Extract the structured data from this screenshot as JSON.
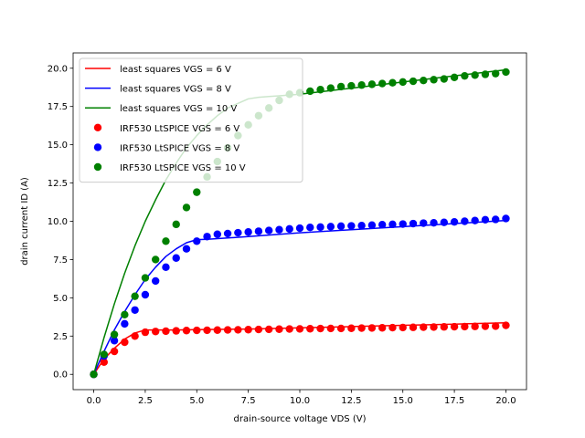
{
  "chart_data": {
    "type": "scatter",
    "title": "",
    "xlabel": "drain-source voltage VDS (V)",
    "ylabel": "drain current ID (A)",
    "xlim": [
      -1.0,
      21.0
    ],
    "ylim": [
      -1.0,
      21.0
    ],
    "xticks": [
      0.0,
      2.5,
      5.0,
      7.5,
      10.0,
      12.5,
      15.0,
      17.5,
      20.0
    ],
    "xtick_labels": [
      "0.0",
      "2.5",
      "5.0",
      "7.5",
      "10.0",
      "12.5",
      "15.0",
      "17.5",
      "20.0"
    ],
    "yticks": [
      0.0,
      2.5,
      5.0,
      7.5,
      10.0,
      12.5,
      15.0,
      17.5,
      20.0
    ],
    "ytick_labels": [
      "0.0",
      "2.5",
      "5.0",
      "7.5",
      "10.0",
      "12.5",
      "15.0",
      "17.5",
      "20.0"
    ],
    "grid": false,
    "legend_position": "top-left",
    "lines": [
      {
        "name": "least squares VGS = 6 V",
        "color": "#ff0000",
        "x": [
          0.0,
          0.5,
          1.0,
          1.5,
          2.0,
          2.5,
          3.0,
          4.0,
          5.0,
          7.5,
          10.0,
          12.5,
          15.0,
          17.5,
          20.0
        ],
        "y": [
          0.0,
          1.0,
          1.7,
          2.3,
          2.7,
          2.9,
          2.9,
          2.9,
          2.92,
          2.96,
          3.04,
          3.12,
          3.2,
          3.28,
          3.37
        ]
      },
      {
        "name": "least squares VGS = 8 V",
        "color": "#0000ff",
        "x": [
          0.0,
          0.5,
          1.0,
          1.5,
          2.0,
          2.5,
          3.0,
          3.5,
          4.0,
          4.5,
          5.0,
          5.5,
          7.5,
          10.0,
          12.5,
          15.0,
          17.5,
          20.0
        ],
        "y": [
          0.0,
          1.5,
          2.9,
          4.1,
          5.2,
          6.2,
          7.0,
          7.7,
          8.2,
          8.6,
          8.8,
          8.82,
          9.0,
          9.25,
          9.45,
          9.65,
          9.85,
          10.05
        ]
      },
      {
        "name": "least squares VGS = 10 V",
        "color": "#008000",
        "x": [
          0.0,
          0.5,
          1.0,
          1.5,
          2.0,
          2.5,
          3.0,
          3.5,
          4.0,
          4.5,
          5.0,
          5.5,
          6.0,
          6.5,
          7.0,
          7.5,
          8.0,
          8.5,
          9.0,
          9.5,
          10.0,
          12.5,
          15.0,
          17.5,
          20.0
        ],
        "y": [
          0.0,
          2.4,
          4.6,
          6.6,
          8.4,
          10.0,
          11.4,
          12.7,
          13.8,
          14.8,
          15.6,
          16.3,
          16.9,
          17.4,
          17.7,
          18.0,
          18.1,
          18.15,
          18.2,
          18.25,
          18.3,
          18.7,
          19.1,
          19.5,
          19.9
        ]
      }
    ],
    "series": [
      {
        "name": "IRF530 LtSPICE VGS = 6 V",
        "color": "#ff0000",
        "x": [
          0.0,
          0.5,
          1.0,
          1.5,
          2.0,
          2.5,
          3.0,
          3.5,
          4.0,
          4.5,
          5.0,
          5.5,
          6.0,
          6.5,
          7.0,
          7.5,
          8.0,
          8.5,
          9.0,
          9.5,
          10.0,
          10.5,
          11.0,
          11.5,
          12.0,
          12.5,
          13.0,
          13.5,
          14.0,
          14.5,
          15.0,
          15.5,
          16.0,
          16.5,
          17.0,
          17.5,
          18.0,
          18.5,
          19.0,
          19.5,
          20.0
        ],
        "y": [
          0.0,
          0.8,
          1.5,
          2.1,
          2.5,
          2.75,
          2.8,
          2.82,
          2.84,
          2.86,
          2.87,
          2.88,
          2.89,
          2.9,
          2.91,
          2.92,
          2.93,
          2.94,
          2.95,
          2.96,
          2.97,
          2.98,
          2.99,
          3.0,
          3.0,
          3.01,
          3.02,
          3.03,
          3.04,
          3.05,
          3.06,
          3.07,
          3.08,
          3.09,
          3.1,
          3.11,
          3.12,
          3.13,
          3.14,
          3.15,
          3.2
        ]
      },
      {
        "name": "IRF530 LtSPICE VGS = 8 V",
        "color": "#0000ff",
        "x": [
          0.0,
          0.5,
          1.0,
          1.5,
          2.0,
          2.5,
          3.0,
          3.5,
          4.0,
          4.5,
          5.0,
          5.5,
          6.0,
          6.5,
          7.0,
          7.5,
          8.0,
          8.5,
          9.0,
          9.5,
          10.0,
          10.5,
          11.0,
          11.5,
          12.0,
          12.5,
          13.0,
          13.5,
          14.0,
          14.5,
          15.0,
          15.5,
          16.0,
          16.5,
          17.0,
          17.5,
          18.0,
          18.5,
          19.0,
          19.5,
          20.0
        ],
        "y": [
          0.0,
          1.2,
          2.2,
          3.3,
          4.2,
          5.2,
          6.1,
          7.0,
          7.6,
          8.2,
          8.7,
          9.0,
          9.15,
          9.2,
          9.25,
          9.3,
          9.35,
          9.4,
          9.45,
          9.5,
          9.55,
          9.6,
          9.62,
          9.65,
          9.68,
          9.7,
          9.72,
          9.75,
          9.78,
          9.8,
          9.82,
          9.85,
          9.88,
          9.9,
          9.93,
          9.96,
          10.0,
          10.05,
          10.1,
          10.12,
          10.18
        ]
      },
      {
        "name": "IRF530 LtSPICE VGS = 10 V",
        "color": "#008000",
        "x": [
          0.0,
          0.5,
          1.0,
          1.5,
          2.0,
          2.5,
          3.0,
          3.5,
          4.0,
          4.5,
          5.0,
          5.5,
          6.0,
          6.5,
          7.0,
          7.5,
          8.0,
          8.5,
          9.0,
          9.5,
          10.0,
          10.5,
          11.0,
          11.5,
          12.0,
          12.5,
          13.0,
          13.5,
          14.0,
          14.5,
          15.0,
          15.5,
          16.0,
          16.5,
          17.0,
          17.5,
          18.0,
          18.5,
          19.0,
          19.5,
          20.0
        ],
        "y": [
          0.0,
          1.3,
          2.6,
          3.9,
          5.1,
          6.3,
          7.5,
          8.7,
          9.8,
          10.9,
          11.9,
          12.9,
          13.9,
          14.8,
          15.6,
          16.3,
          16.9,
          17.4,
          17.9,
          18.3,
          18.4,
          18.5,
          18.6,
          18.7,
          18.8,
          18.85,
          18.9,
          18.95,
          19.0,
          19.05,
          19.1,
          19.15,
          19.2,
          19.25,
          19.3,
          19.4,
          19.5,
          19.55,
          19.6,
          19.65,
          19.75
        ]
      }
    ]
  }
}
